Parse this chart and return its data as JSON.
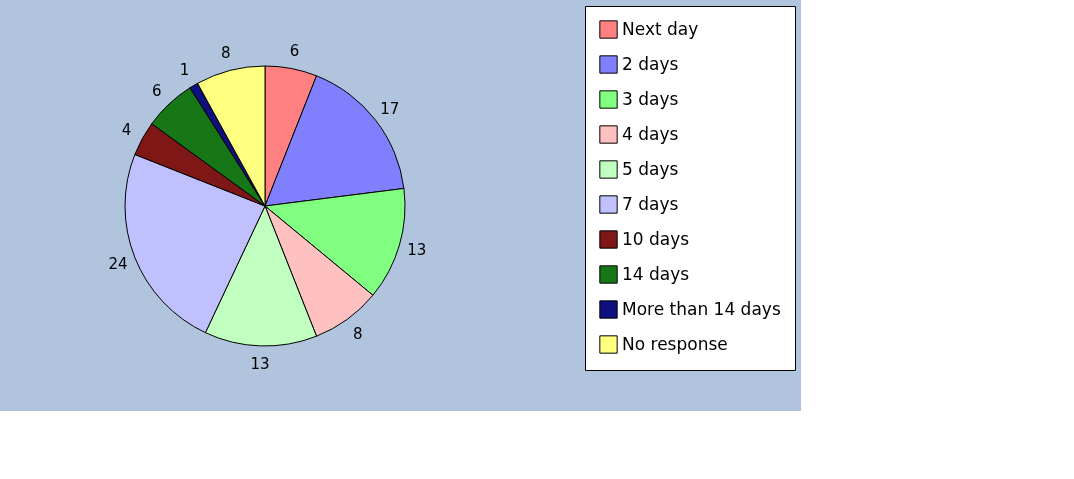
{
  "chart_data": {
    "type": "pie",
    "categories": [
      "Next day",
      "2 days",
      "3 days",
      "4 days",
      "5 days",
      "7 days",
      "10 days",
      "14 days",
      "More than 14 days",
      "No response"
    ],
    "values": [
      6,
      17,
      13,
      8,
      13,
      24,
      4,
      6,
      1,
      8
    ],
    "colors": [
      "#ff8080",
      "#8080ff",
      "#80ff80",
      "#ffc0c0",
      "#c0ffc0",
      "#c0c0ff",
      "#7f1717",
      "#177717",
      "#0f0f7f",
      "#ffff80"
    ],
    "data_labels": true,
    "legend": "right"
  }
}
